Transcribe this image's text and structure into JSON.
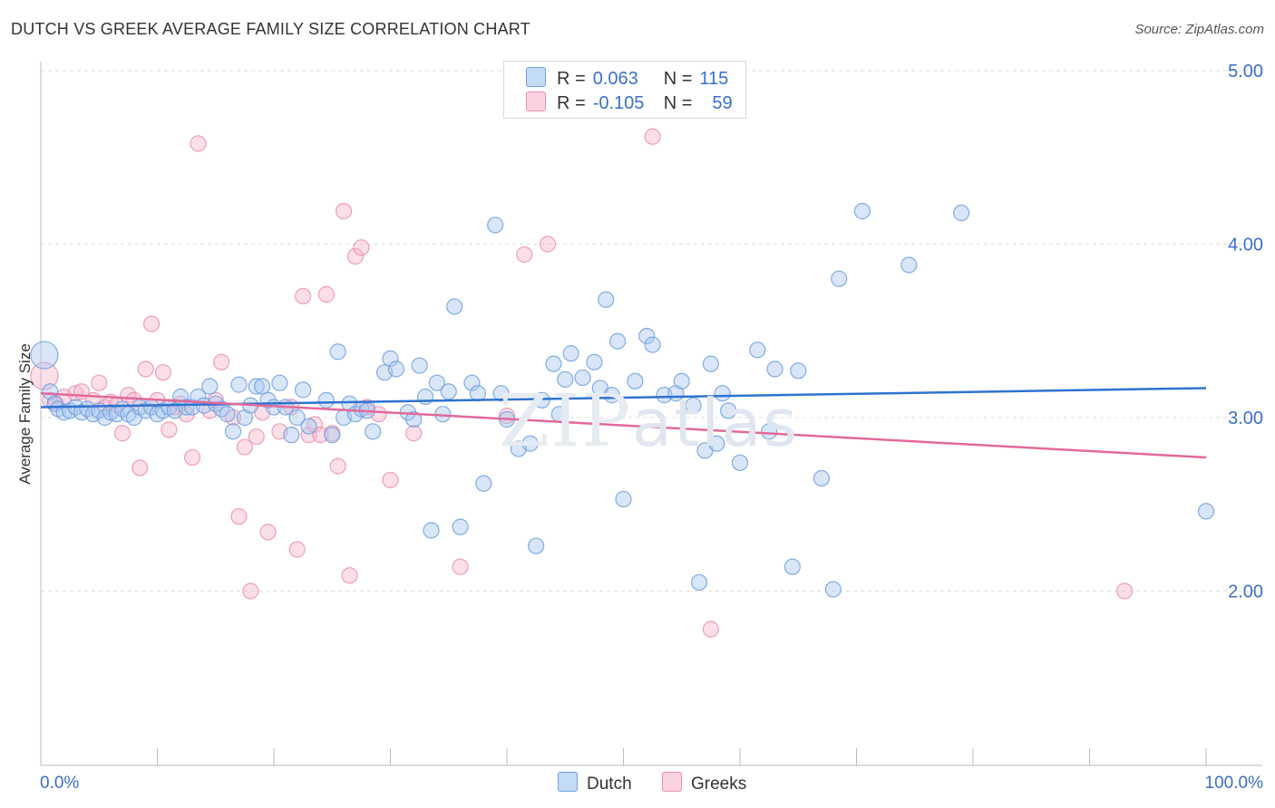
{
  "header": {
    "title": "DUTCH VS GREEK AVERAGE FAMILY SIZE CORRELATION CHART",
    "source": "Source: ZipAtlas.com"
  },
  "legend": {
    "r_label": "R =",
    "n_label": "N =",
    "dutch": {
      "r": "0.063",
      "n": "115"
    },
    "greeks": {
      "r": "-0.105",
      "n": "59"
    }
  },
  "watermark": {
    "zip": "ZIP",
    "atlas": "atlas"
  },
  "colors": {
    "dutch_fill": "#a9c8f0",
    "dutch_stroke": "#6f9fdf",
    "dutch_line": "#2f72d0",
    "greeks_fill": "#f6b8cc",
    "greeks_stroke": "#ec8fae",
    "greeks_line": "#e2699a",
    "axis_text": "#3a6fc9",
    "grid": "#dddddd"
  },
  "chart_data": {
    "type": "scatter",
    "title": "DUTCH VS GREEK AVERAGE FAMILY SIZE CORRELATION CHART",
    "xlabel": "",
    "ylabel": "Average Family Size",
    "xlim": [
      0,
      100
    ],
    "ylim": [
      1.0,
      5.1
    ],
    "x_tick_labels": [
      "0.0%",
      "100.0%"
    ],
    "y_ticks": [
      2.0,
      3.0,
      4.0,
      5.0
    ],
    "y_tick_labels": [
      "2.00",
      "3.00",
      "4.00",
      "5.00"
    ],
    "grid": true,
    "legend_position": "top-center",
    "series": [
      {
        "name": "Dutch",
        "trend": [
          [
            0,
            3.06
          ],
          [
            100,
            3.17
          ]
        ],
        "points": [
          [
            0.3,
            3.36
          ],
          [
            0.8,
            3.15
          ],
          [
            1.2,
            3.08
          ],
          [
            1.5,
            3.05
          ],
          [
            2.0,
            3.03
          ],
          [
            2.5,
            3.04
          ],
          [
            3.0,
            3.06
          ],
          [
            3.5,
            3.03
          ],
          [
            4.0,
            3.05
          ],
          [
            4.5,
            3.02
          ],
          [
            5.0,
            3.04
          ],
          [
            5.5,
            3.0
          ],
          [
            6.0,
            3.03
          ],
          [
            6.5,
            3.02
          ],
          [
            7.0,
            3.05
          ],
          [
            7.5,
            3.02
          ],
          [
            8.0,
            3.0
          ],
          [
            8.5,
            3.06
          ],
          [
            9.0,
            3.04
          ],
          [
            9.5,
            3.06
          ],
          [
            10.0,
            3.02
          ],
          [
            10.5,
            3.04
          ],
          [
            11.0,
            3.06
          ],
          [
            11.5,
            3.04
          ],
          [
            12.0,
            3.12
          ],
          [
            12.5,
            3.06
          ],
          [
            13.0,
            3.06
          ],
          [
            13.5,
            3.12
          ],
          [
            14.0,
            3.07
          ],
          [
            14.5,
            3.18
          ],
          [
            15.0,
            3.08
          ],
          [
            15.5,
            3.05
          ],
          [
            16.0,
            3.02
          ],
          [
            16.5,
            2.92
          ],
          [
            17.0,
            3.19
          ],
          [
            17.5,
            3.0
          ],
          [
            18.0,
            3.07
          ],
          [
            18.5,
            3.18
          ],
          [
            19.0,
            3.18
          ],
          [
            19.5,
            3.1
          ],
          [
            20.0,
            3.06
          ],
          [
            20.5,
            3.2
          ],
          [
            21.0,
            3.06
          ],
          [
            21.5,
            2.9
          ],
          [
            22.0,
            3.0
          ],
          [
            22.5,
            3.16
          ],
          [
            23.0,
            2.95
          ],
          [
            24.5,
            3.1
          ],
          [
            25.0,
            2.9
          ],
          [
            25.5,
            3.38
          ],
          [
            26.0,
            3.0
          ],
          [
            26.5,
            3.08
          ],
          [
            27.0,
            3.02
          ],
          [
            27.5,
            3.05
          ],
          [
            28.0,
            3.04
          ],
          [
            28.5,
            2.92
          ],
          [
            29.5,
            3.26
          ],
          [
            30.0,
            3.34
          ],
          [
            30.5,
            3.28
          ],
          [
            31.5,
            3.03
          ],
          [
            32.0,
            2.99
          ],
          [
            32.5,
            3.3
          ],
          [
            33.0,
            3.12
          ],
          [
            33.5,
            2.35
          ],
          [
            34.0,
            3.2
          ],
          [
            34.5,
            3.02
          ],
          [
            35.0,
            3.15
          ],
          [
            35.5,
            3.64
          ],
          [
            36.0,
            2.37
          ],
          [
            37.0,
            3.2
          ],
          [
            37.5,
            3.14
          ],
          [
            38.0,
            2.62
          ],
          [
            39.0,
            4.11
          ],
          [
            39.5,
            3.14
          ],
          [
            40.0,
            2.99
          ],
          [
            41.0,
            2.82
          ],
          [
            42.0,
            2.85
          ],
          [
            42.5,
            2.26
          ],
          [
            43.0,
            3.1
          ],
          [
            44.0,
            3.31
          ],
          [
            44.5,
            3.02
          ],
          [
            45.0,
            3.22
          ],
          [
            45.5,
            3.37
          ],
          [
            46.5,
            3.23
          ],
          [
            47.5,
            3.32
          ],
          [
            48.0,
            3.17
          ],
          [
            48.5,
            3.68
          ],
          [
            49.0,
            3.13
          ],
          [
            49.5,
            3.44
          ],
          [
            50.0,
            2.53
          ],
          [
            51.0,
            3.21
          ],
          [
            52.0,
            3.47
          ],
          [
            52.5,
            3.42
          ],
          [
            53.5,
            3.13
          ],
          [
            54.5,
            3.14
          ],
          [
            55.0,
            3.21
          ],
          [
            56.0,
            3.07
          ],
          [
            56.5,
            2.05
          ],
          [
            57.0,
            2.81
          ],
          [
            57.5,
            3.31
          ],
          [
            58.0,
            2.85
          ],
          [
            58.5,
            3.14
          ],
          [
            59.0,
            3.04
          ],
          [
            60.0,
            2.74
          ],
          [
            61.5,
            3.39
          ],
          [
            62.5,
            2.92
          ],
          [
            63.0,
            3.28
          ],
          [
            64.5,
            2.14
          ],
          [
            65.0,
            3.27
          ],
          [
            67.0,
            2.65
          ],
          [
            68.0,
            2.01
          ],
          [
            68.5,
            3.8
          ],
          [
            70.5,
            4.19
          ],
          [
            74.5,
            3.88
          ],
          [
            79.0,
            4.18
          ],
          [
            100.0,
            2.46
          ]
        ]
      },
      {
        "name": "Greeks",
        "trend": [
          [
            0,
            3.14
          ],
          [
            100,
            2.77
          ]
        ],
        "points": [
          [
            0.3,
            3.24
          ],
          [
            0.8,
            3.1
          ],
          [
            1.3,
            3.08
          ],
          [
            2.0,
            3.12
          ],
          [
            3.0,
            3.14
          ],
          [
            3.5,
            3.15
          ],
          [
            4.5,
            3.1
          ],
          [
            5.0,
            3.2
          ],
          [
            5.5,
            3.06
          ],
          [
            6.0,
            3.09
          ],
          [
            6.5,
            3.07
          ],
          [
            7.0,
            2.91
          ],
          [
            7.5,
            3.13
          ],
          [
            8.0,
            3.1
          ],
          [
            8.5,
            2.71
          ],
          [
            9.0,
            3.28
          ],
          [
            9.5,
            3.54
          ],
          [
            10.0,
            3.1
          ],
          [
            10.5,
            3.26
          ],
          [
            11.0,
            2.93
          ],
          [
            11.5,
            3.06
          ],
          [
            12.0,
            3.08
          ],
          [
            12.5,
            3.02
          ],
          [
            13.0,
            2.77
          ],
          [
            13.5,
            4.58
          ],
          [
            14.5,
            3.04
          ],
          [
            15.0,
            3.1
          ],
          [
            15.5,
            3.32
          ],
          [
            16.5,
            3.0
          ],
          [
            17.0,
            2.43
          ],
          [
            17.5,
            2.83
          ],
          [
            18.0,
            2.0
          ],
          [
            18.5,
            2.89
          ],
          [
            19.0,
            3.03
          ],
          [
            19.5,
            2.34
          ],
          [
            20.5,
            2.92
          ],
          [
            21.5,
            3.06
          ],
          [
            22.0,
            2.24
          ],
          [
            22.5,
            3.7
          ],
          [
            23.0,
            2.9
          ],
          [
            23.5,
            2.96
          ],
          [
            24.0,
            2.9
          ],
          [
            24.5,
            3.71
          ],
          [
            25.0,
            2.91
          ],
          [
            25.5,
            2.72
          ],
          [
            26.0,
            4.19
          ],
          [
            26.5,
            2.09
          ],
          [
            27.0,
            3.93
          ],
          [
            27.5,
            3.98
          ],
          [
            28.0,
            3.06
          ],
          [
            29.0,
            3.02
          ],
          [
            30.0,
            2.64
          ],
          [
            32.0,
            2.91
          ],
          [
            36.0,
            2.14
          ],
          [
            40.0,
            3.01
          ],
          [
            41.5,
            3.94
          ],
          [
            43.5,
            4.0
          ],
          [
            52.5,
            4.62
          ],
          [
            57.5,
            1.78
          ],
          [
            93.0,
            2.0
          ]
        ]
      }
    ]
  },
  "bottom_legend": {
    "dutch": "Dutch",
    "greeks": "Greeks"
  }
}
